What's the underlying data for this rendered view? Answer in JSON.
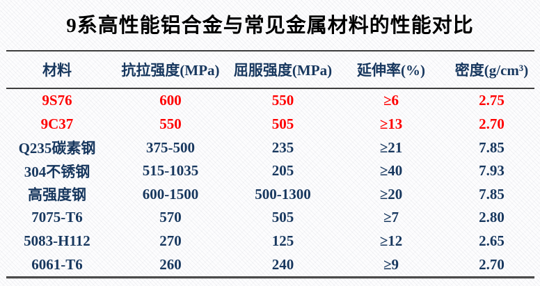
{
  "title": "9系高性能铝合金与常见金属材料的性能对比",
  "colors": {
    "title_text": "#000000",
    "header_text": "#17375E",
    "data_text": "#17375E",
    "highlight_text": "#FE0000",
    "rule_line": "#3D3D3D",
    "background": "#FDFDFE"
  },
  "table": {
    "headers": [
      "材料",
      "抗拉强度(MPa)",
      "屈服强度(MPa)",
      "延伸率(%)",
      "密度(g/cm³)"
    ],
    "rows": [
      {
        "material": "9S76",
        "tensile_strength": "600",
        "yield_strength": "550",
        "elongation": "≥6",
        "density": "2.75",
        "highlighted": true
      },
      {
        "material": "9C37",
        "tensile_strength": "550",
        "yield_strength": "505",
        "elongation": "≥13",
        "density": "2.70",
        "highlighted": true
      },
      {
        "material": "Q235碳素钢",
        "tensile_strength": "375-500",
        "yield_strength": "235",
        "elongation": "≥21",
        "density": "7.85",
        "highlighted": false
      },
      {
        "material": "304不锈钢",
        "tensile_strength": "515-1035",
        "yield_strength": "205",
        "elongation": "≥40",
        "density": "7.93",
        "highlighted": false
      },
      {
        "material": "高强度钢",
        "tensile_strength": "600-1500",
        "yield_strength": "500-1300",
        "elongation": "≥20",
        "density": "7.85",
        "highlighted": false
      },
      {
        "material": "7075-T6",
        "tensile_strength": "570",
        "yield_strength": "505",
        "elongation": "≥7",
        "density": "2.80",
        "highlighted": false
      },
      {
        "material": "5083-H112",
        "tensile_strength": "270",
        "yield_strength": "125",
        "elongation": "≥12",
        "density": "2.65",
        "highlighted": false
      },
      {
        "material": "6061-T6",
        "tensile_strength": "260",
        "yield_strength": "240",
        "elongation": "≥9",
        "density": "2.70",
        "highlighted": false
      }
    ]
  },
  "chart_data": {
    "type": "table",
    "title": "9系高性能铝合金与常见金属材料的性能对比",
    "columns": [
      "材料",
      "抗拉强度(MPa)",
      "屈服强度(MPa)",
      "延伸率(%)",
      "密度(g/cm³)"
    ],
    "rows": [
      [
        "9S76",
        "600",
        "550",
        "≥6",
        "2.75"
      ],
      [
        "9C37",
        "550",
        "505",
        "≥13",
        "2.70"
      ],
      [
        "Q235碳素钢",
        "375-500",
        "235",
        "≥21",
        "7.85"
      ],
      [
        "304不锈钢",
        "515-1035",
        "205",
        "≥40",
        "7.93"
      ],
      [
        "高强度钢",
        "600-1500",
        "500-1300",
        "≥20",
        "7.85"
      ],
      [
        "7075-T6",
        "570",
        "505",
        "≥7",
        "2.80"
      ],
      [
        "5083-H112",
        "270",
        "125",
        "≥12",
        "2.65"
      ],
      [
        "6061-T6",
        "260",
        "240",
        "≥9",
        "2.70"
      ]
    ],
    "highlighted_rows": [
      0,
      1
    ],
    "highlight_color": "#FE0000"
  }
}
